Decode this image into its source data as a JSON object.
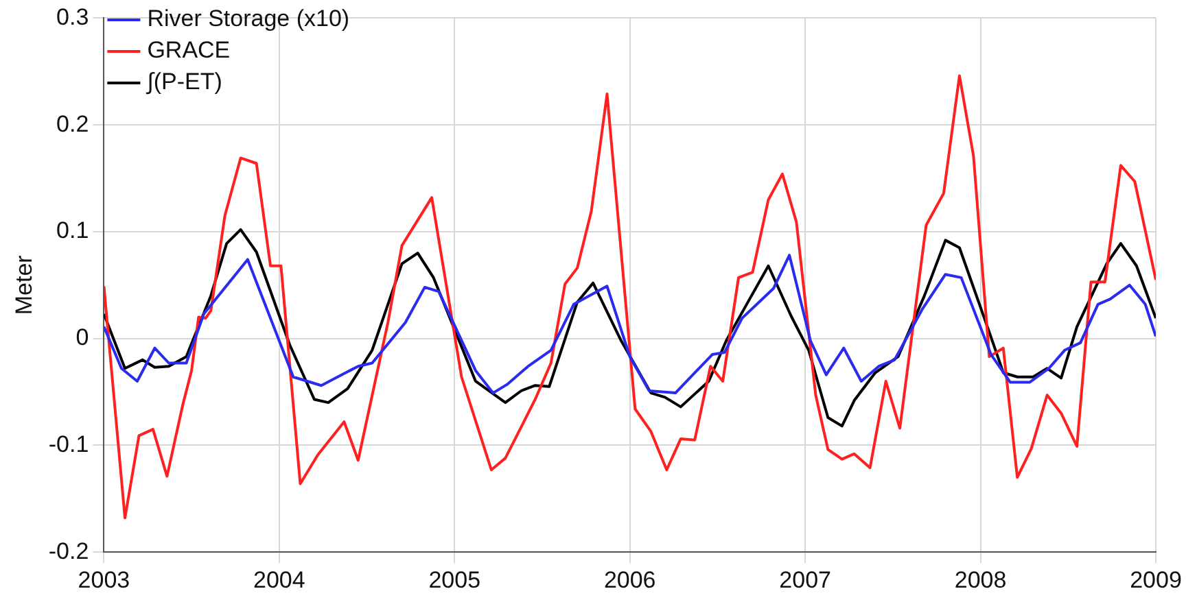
{
  "chart_data": {
    "type": "line",
    "ylabel": "Meter",
    "xlim": [
      2003,
      2009
    ],
    "xticks": [
      2003,
      2004,
      2005,
      2006,
      2007,
      2008,
      2009
    ],
    "ylim": [
      -0.2,
      0.3
    ],
    "yticks": [
      -0.2,
      -0.1,
      0,
      0.1,
      0.2,
      0.3
    ],
    "grid": true,
    "legend": "top left",
    "marker": "none",
    "line_style": "solid",
    "series": [
      {
        "name": "River Storage (x10)",
        "color": "#2b2bf0",
        "x": [
          2003.0,
          2003.1,
          2003.19,
          2003.29,
          2003.37,
          2003.47,
          2003.57,
          2003.82,
          2004.08,
          2004.24,
          2004.45,
          2004.53,
          2004.72,
          2004.83,
          2004.91,
          2005.12,
          2005.22,
          2005.3,
          2005.42,
          2005.55,
          2005.68,
          2005.87,
          2006.0,
          2006.11,
          2006.26,
          2006.47,
          2006.54,
          2006.64,
          2006.82,
          2006.91,
          2007.03,
          2007.12,
          2007.22,
          2007.32,
          2007.42,
          2007.51,
          2007.67,
          2007.8,
          2007.89,
          2008.06,
          2008.17,
          2008.28,
          2008.39,
          2008.48,
          2008.57,
          2008.67,
          2008.74,
          2008.85,
          2008.94,
          2009.0
        ],
        "values": [
          0.011,
          -0.028,
          -0.04,
          -0.009,
          -0.023,
          -0.023,
          0.023,
          0.074,
          -0.036,
          -0.044,
          -0.026,
          -0.023,
          0.015,
          0.048,
          0.044,
          -0.03,
          -0.051,
          -0.043,
          -0.026,
          -0.011,
          0.032,
          0.049,
          -0.017,
          -0.049,
          -0.051,
          -0.015,
          -0.013,
          0.019,
          0.047,
          0.078,
          -0.002,
          -0.034,
          -0.009,
          -0.04,
          -0.026,
          -0.02,
          0.028,
          0.06,
          0.057,
          -0.015,
          -0.041,
          -0.041,
          -0.028,
          -0.011,
          -0.004,
          0.032,
          0.037,
          0.05,
          0.032,
          0.002
        ]
      },
      {
        "name": "GRACE",
        "color": "#ff2020",
        "x": [
          2003.0,
          2003.12,
          2003.2,
          2003.28,
          2003.36,
          2003.45,
          2003.5,
          2003.54,
          2003.58,
          2003.61,
          2003.69,
          2003.78,
          2003.87,
          2003.95,
          2004.01,
          2004.12,
          2004.22,
          2004.37,
          2004.45,
          2004.62,
          2004.7,
          2004.87,
          2005.04,
          2005.21,
          2005.29,
          2005.46,
          2005.55,
          2005.63,
          2005.7,
          2005.78,
          2005.87,
          2006.03,
          2006.12,
          2006.21,
          2006.29,
          2006.37,
          2006.46,
          2006.53,
          2006.62,
          2006.7,
          2006.79,
          2006.87,
          2006.95,
          2007.06,
          2007.13,
          2007.21,
          2007.28,
          2007.37,
          2007.46,
          2007.54,
          2007.69,
          2007.79,
          2007.88,
          2007.96,
          2008.05,
          2008.13,
          2008.21,
          2008.29,
          2008.38,
          2008.46,
          2008.55,
          2008.63,
          2008.71,
          2008.8,
          2008.88,
          2009.0
        ],
        "values": [
          0.049,
          -0.168,
          -0.091,
          -0.085,
          -0.129,
          -0.062,
          -0.03,
          0.02,
          0.019,
          0.026,
          0.115,
          0.169,
          0.164,
          0.068,
          0.068,
          -0.136,
          -0.109,
          -0.078,
          -0.114,
          0.015,
          0.087,
          0.132,
          -0.036,
          -0.123,
          -0.112,
          -0.057,
          -0.023,
          0.051,
          0.066,
          0.119,
          0.229,
          -0.066,
          -0.087,
          -0.123,
          -0.094,
          -0.095,
          -0.026,
          -0.04,
          0.057,
          0.062,
          0.13,
          0.154,
          0.109,
          -0.053,
          -0.104,
          -0.113,
          -0.108,
          -0.121,
          -0.04,
          -0.084,
          0.106,
          0.136,
          0.246,
          0.171,
          -0.017,
          -0.009,
          -0.13,
          -0.103,
          -0.053,
          -0.07,
          -0.101,
          0.053,
          0.053,
          0.162,
          0.147,
          0.055
        ]
      },
      {
        "name": "∫(P-ET)",
        "color": "#000000",
        "x": [
          2003.0,
          2003.12,
          2003.22,
          2003.29,
          2003.37,
          2003.47,
          2003.61,
          2003.7,
          2003.78,
          2003.87,
          2004.06,
          2004.2,
          2004.28,
          2004.39,
          2004.53,
          2004.7,
          2004.79,
          2004.88,
          2005.12,
          2005.29,
          2005.38,
          2005.46,
          2005.54,
          2005.7,
          2005.79,
          2005.95,
          2006.12,
          2006.2,
          2006.29,
          2006.45,
          2006.55,
          2006.68,
          2006.79,
          2006.92,
          2007.02,
          2007.13,
          2007.21,
          2007.28,
          2007.4,
          2007.53,
          2007.68,
          2007.8,
          2007.88,
          2008.05,
          2008.13,
          2008.21,
          2008.3,
          2008.38,
          2008.46,
          2008.55,
          2008.72,
          2008.8,
          2008.89,
          2009.0
        ],
        "values": [
          0.023,
          -0.028,
          -0.02,
          -0.027,
          -0.026,
          -0.017,
          0.04,
          0.089,
          0.102,
          0.081,
          -0.006,
          -0.057,
          -0.06,
          -0.047,
          -0.011,
          0.07,
          0.08,
          0.057,
          -0.04,
          -0.06,
          -0.049,
          -0.044,
          -0.045,
          0.034,
          0.052,
          -0.002,
          -0.051,
          -0.055,
          -0.064,
          -0.04,
          -0.002,
          0.036,
          0.068,
          0.021,
          -0.011,
          -0.074,
          -0.082,
          -0.058,
          -0.032,
          -0.017,
          0.04,
          0.092,
          0.085,
          0.006,
          -0.032,
          -0.036,
          -0.036,
          -0.028,
          -0.037,
          0.011,
          0.07,
          0.089,
          0.068,
          0.019
        ]
      }
    ]
  }
}
